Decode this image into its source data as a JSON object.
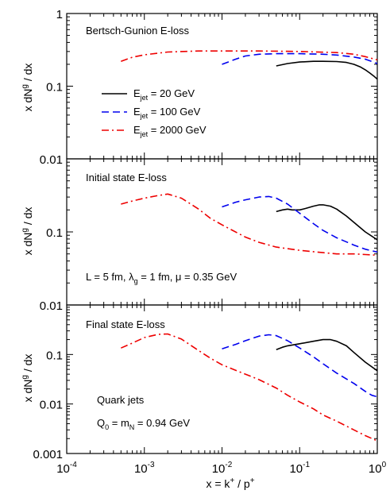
{
  "chart_data": [
    {
      "type": "line",
      "panel": "top",
      "annotation": "Bertsch-Gunion E-loss",
      "ylabel": "x dN^g / dx",
      "xscale": "log",
      "yscale": "log",
      "xlim": [
        0.0001,
        1
      ],
      "ylim": [
        0.01,
        1
      ],
      "yticks": [
        "0.01",
        "0.1",
        "1"
      ],
      "legend_placement": "center-left",
      "series": [
        {
          "name": "E_jet = 20 GeV",
          "color": "#000000",
          "dash": "solid",
          "x": [
            0.05,
            0.07,
            0.1,
            0.15,
            0.2,
            0.3,
            0.4,
            0.5,
            0.6,
            0.7,
            0.8,
            0.9,
            1.0
          ],
          "y": [
            0.19,
            0.205,
            0.215,
            0.22,
            0.22,
            0.218,
            0.212,
            0.2,
            0.185,
            0.168,
            0.152,
            0.138,
            0.125
          ]
        },
        {
          "name": "E_jet = 100 GeV",
          "color": "#0000ee",
          "dash": "dash",
          "x": [
            0.01,
            0.015,
            0.02,
            0.03,
            0.05,
            0.1,
            0.2,
            0.3,
            0.5,
            0.7,
            1.0
          ],
          "y": [
            0.2,
            0.235,
            0.26,
            0.275,
            0.28,
            0.28,
            0.275,
            0.268,
            0.252,
            0.235,
            0.205
          ]
        },
        {
          "name": "E_jet = 2000 GeV",
          "color": "#ee0000",
          "dash": "dashdot",
          "x": [
            0.0005,
            0.0007,
            0.001,
            0.002,
            0.005,
            0.01,
            0.03,
            0.1,
            0.3,
            0.5,
            0.7,
            1.0
          ],
          "y": [
            0.22,
            0.25,
            0.27,
            0.295,
            0.305,
            0.305,
            0.305,
            0.3,
            0.29,
            0.275,
            0.255,
            0.23
          ]
        }
      ]
    },
    {
      "type": "line",
      "panel": "middle",
      "annotation": "Initial state E-loss",
      "annotation2": "L = 5 fm, λ_g = 1 fm, μ = 0.35 GeV",
      "ylabel": "x dN^g / dx",
      "xscale": "log",
      "yscale": "log",
      "xlim": [
        0.0001,
        1
      ],
      "ylim": [
        0.01,
        1
      ],
      "yticks": [
        "0.01",
        "0.1"
      ],
      "series": [
        {
          "name": "E_jet = 20 GeV",
          "color": "#000000",
          "dash": "solid",
          "x": [
            0.05,
            0.06,
            0.07,
            0.08,
            0.1,
            0.12,
            0.15,
            0.18,
            0.2,
            0.25,
            0.3,
            0.4,
            0.5,
            0.7,
            1.0
          ],
          "y": [
            0.19,
            0.2,
            0.205,
            0.2,
            0.2,
            0.21,
            0.225,
            0.235,
            0.235,
            0.225,
            0.205,
            0.165,
            0.135,
            0.1,
            0.078
          ]
        },
        {
          "name": "E_jet = 100 GeV",
          "color": "#0000ee",
          "dash": "dash",
          "x": [
            0.01,
            0.015,
            0.02,
            0.03,
            0.04,
            0.05,
            0.07,
            0.1,
            0.15,
            0.2,
            0.3,
            0.5,
            0.7,
            1.0
          ],
          "y": [
            0.22,
            0.255,
            0.275,
            0.3,
            0.305,
            0.29,
            0.24,
            0.18,
            0.13,
            0.105,
            0.083,
            0.066,
            0.058,
            0.053
          ]
        },
        {
          "name": "E_jet = 2000 GeV",
          "color": "#ee0000",
          "dash": "dashdot",
          "x": [
            0.0005,
            0.0007,
            0.001,
            0.0015,
            0.002,
            0.003,
            0.005,
            0.007,
            0.01,
            0.02,
            0.03,
            0.05,
            0.1,
            0.2,
            0.3,
            0.5,
            0.7,
            1.0
          ],
          "y": [
            0.24,
            0.265,
            0.29,
            0.315,
            0.33,
            0.29,
            0.205,
            0.155,
            0.125,
            0.085,
            0.072,
            0.062,
            0.056,
            0.052,
            0.05,
            0.05,
            0.049,
            0.048
          ]
        }
      ]
    },
    {
      "type": "line",
      "panel": "bottom",
      "annotation": "Final state E-loss",
      "annotation2": "Quark jets",
      "annotation3": "Q_0 = m_N = 0.94 GeV",
      "ylabel": "x dN^g / dx",
      "xlabel": "x = k^+ / p^+",
      "xscale": "log",
      "yscale": "log",
      "xlim": [
        0.0001,
        1
      ],
      "ylim": [
        0.001,
        1
      ],
      "yticks": [
        "0.001",
        "0.01",
        "0.1"
      ],
      "xticks": [
        "10^-4",
        "10^-3",
        "10^-2",
        "10^-1",
        "10^0"
      ],
      "series": [
        {
          "name": "E_jet = 20 GeV",
          "color": "#000000",
          "dash": "solid",
          "x": [
            0.05,
            0.06,
            0.07,
            0.1,
            0.15,
            0.2,
            0.25,
            0.3,
            0.4,
            0.5,
            0.7,
            1.0
          ],
          "y": [
            0.125,
            0.14,
            0.15,
            0.165,
            0.185,
            0.2,
            0.2,
            0.185,
            0.15,
            0.11,
            0.07,
            0.047
          ]
        },
        {
          "name": "E_jet = 100 GeV",
          "color": "#0000ee",
          "dash": "dash",
          "x": [
            0.01,
            0.015,
            0.02,
            0.03,
            0.04,
            0.05,
            0.07,
            0.1,
            0.15,
            0.2,
            0.3,
            0.5,
            0.7,
            0.85,
            1.0
          ],
          "y": [
            0.13,
            0.16,
            0.19,
            0.235,
            0.25,
            0.24,
            0.19,
            0.135,
            0.09,
            0.065,
            0.042,
            0.026,
            0.018,
            0.015,
            0.014
          ]
        },
        {
          "name": "E_jet = 2000 GeV",
          "color": "#ee0000",
          "dash": "dashdot",
          "x": [
            0.0005,
            0.0007,
            0.001,
            0.0015,
            0.002,
            0.003,
            0.005,
            0.007,
            0.01,
            0.015,
            0.02,
            0.03,
            0.05,
            0.07,
            0.1,
            0.15,
            0.2,
            0.3,
            0.5,
            0.7,
            1.0
          ],
          "y": [
            0.135,
            0.17,
            0.22,
            0.255,
            0.26,
            0.205,
            0.12,
            0.085,
            0.062,
            0.048,
            0.04,
            0.031,
            0.021,
            0.015,
            0.011,
            0.008,
            0.006,
            0.0045,
            0.003,
            0.0023,
            0.0018
          ]
        }
      ]
    }
  ],
  "legend": [
    {
      "text": "E",
      "sub": "jet",
      "rest": " = 20 GeV"
    },
    {
      "text": "E",
      "sub": "jet",
      "rest": " = 100 GeV"
    },
    {
      "text": "E",
      "sub": "jet",
      "rest": " = 2000 GeV"
    }
  ]
}
